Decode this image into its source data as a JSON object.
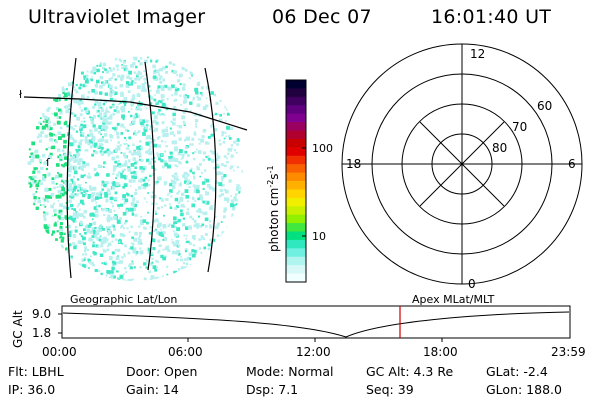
{
  "header": {
    "title": "Ultraviolet Imager",
    "date": "06 Dec 07",
    "time": "16:01:40 UT"
  },
  "colorbar": {
    "label_html": "photon cm<sup>-2</sup>s<sup>-1</sup>",
    "ticks": [
      "100",
      "10"
    ],
    "colors": [
      "#000030",
      "#20003f",
      "#400060",
      "#60007f",
      "#800090",
      "#9a0060",
      "#b00030",
      "#c80000",
      "#e00000",
      "#f03000",
      "#f86000",
      "#ff8c00",
      "#ffb000",
      "#ffd400",
      "#f2ee00",
      "#c8f000",
      "#90f000",
      "#40e840",
      "#00e080",
      "#30e8c0",
      "#70f0e0",
      "#b0f4f0",
      "#d8f8f8",
      "#f0ffff"
    ]
  },
  "polar": {
    "labels": {
      "top": "12",
      "bottom": "0",
      "left": "18",
      "right": "6",
      "lat60": "60",
      "lat70": "70",
      "lat80": "80"
    }
  },
  "timeline": {
    "left_label": "Geographic Lat/Lon",
    "right_label": "Apex MLat/MLT",
    "ylabel": "GC Alt",
    "y_ticks": [
      "9.0",
      "1.8"
    ],
    "x_ticks": [
      "00:00",
      "06:00",
      "12:00",
      "18:00",
      "23:59"
    ],
    "marker_color": "#d00000"
  },
  "info": {
    "filter": "Flt: LBHL",
    "door": "Door: Open",
    "mode": "Mode: Normal",
    "gc_alt": "GC Alt: 4.3 Re",
    "glat": "GLat:  -2.4",
    "ip": "IP: 36.0",
    "gain": "Gain: 14",
    "dsp": "Dsp:    7.1",
    "seq": "Seq: 39",
    "glon": "GLon: 188.0"
  },
  "colors": {
    "aurora_dense": "#20e080",
    "aurora_mid": "#40e8c8",
    "aurora_light": "#b8f0f0",
    "marker": "#d00000"
  }
}
